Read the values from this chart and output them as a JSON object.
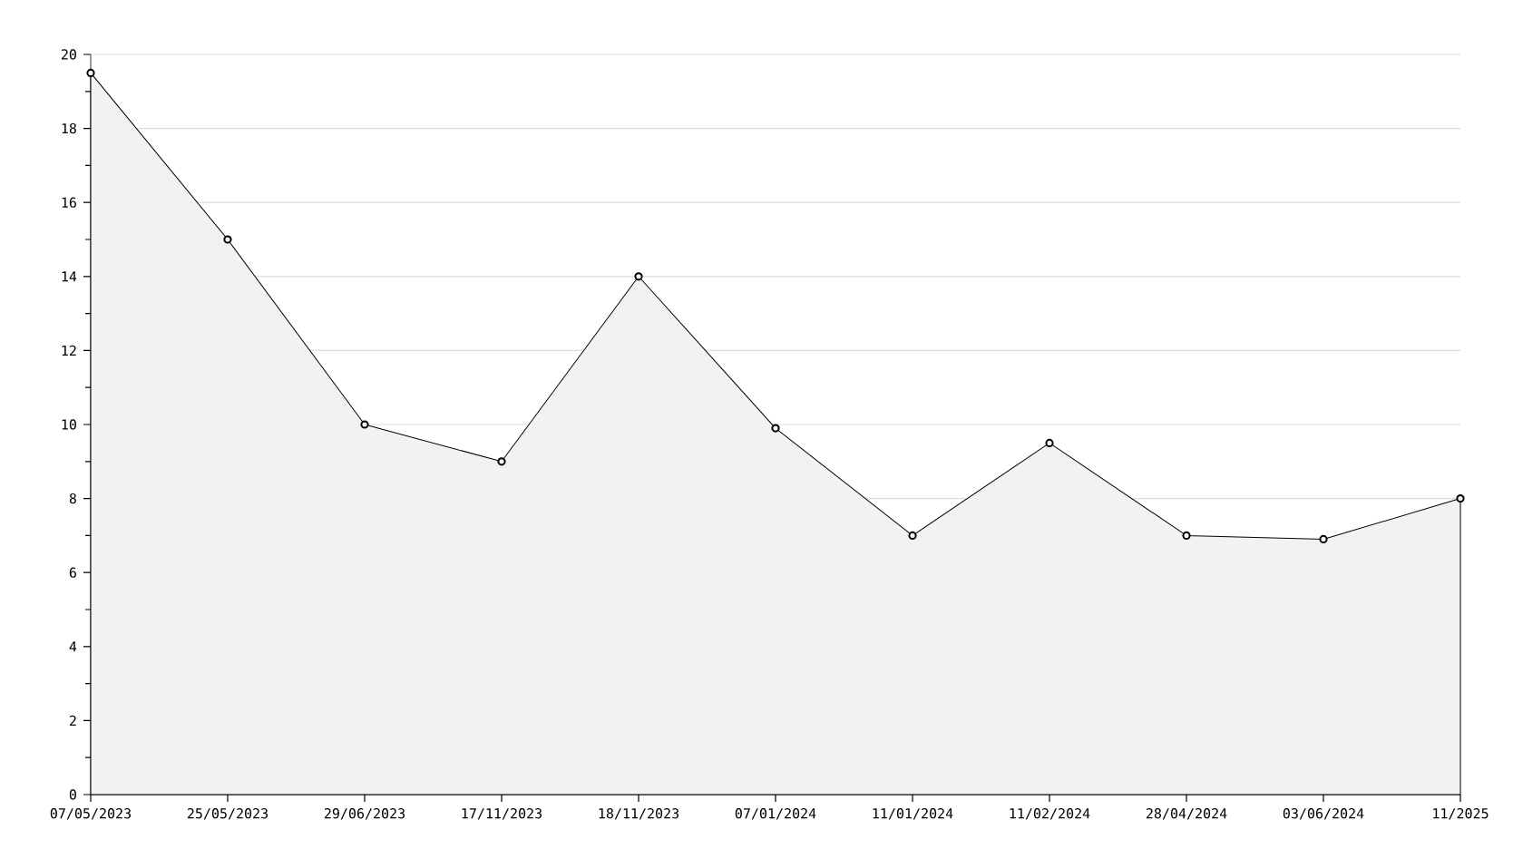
{
  "chart_data": {
    "type": "area",
    "categories": [
      "07/05/2023",
      "25/05/2023",
      "29/06/2023",
      "17/11/2023",
      "18/11/2023",
      "07/01/2024",
      "11/01/2024",
      "11/02/2024",
      "28/04/2024",
      "03/06/2024",
      "11/2025"
    ],
    "values": [
      19.5,
      15,
      10,
      9,
      14,
      9.9,
      7,
      9.5,
      7,
      6.9,
      8
    ],
    "color": "#f2f2f2",
    "ylim": [
      0,
      20
    ],
    "yticks": [
      0,
      {
        "value": 1,
        "label": null
      },
      2,
      {
        "value": 3,
        "label": null
      },
      4,
      {
        "value": 5,
        "label": null
      },
      6,
      {
        "value": 7,
        "label": null
      },
      8,
      {
        "value": 9,
        "label": null
      },
      10,
      {
        "value": 11,
        "label": null
      },
      12,
      {
        "value": 13,
        "label": null
      },
      14,
      {
        "value": 15,
        "label": null
      },
      16,
      {
        "value": 17,
        "label": null
      },
      18,
      {
        "value": 19,
        "label": null
      },
      20
    ],
    "grid": "y",
    "marker": "circle",
    "line_style": "solid"
  }
}
